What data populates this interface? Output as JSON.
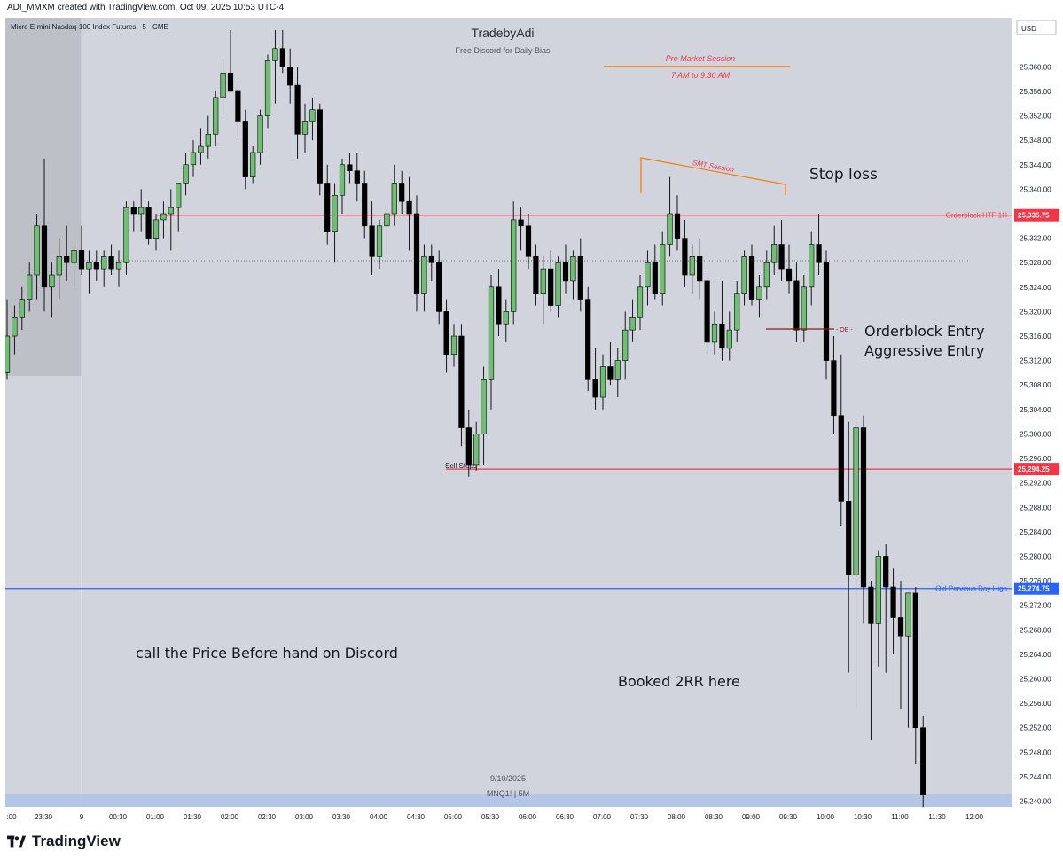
{
  "header": "ADI_MMXM created with TradingView.com, Oct 09, 2025 10:53 UTC-4",
  "symbol_line": "Micro E-mini Nasdaq-100 Index Futures · 5 · CME",
  "watermark": {
    "title": "TradebyAdi",
    "subtitle": "Free Discord for Daily Bias"
  },
  "currency": "USD",
  "brand": "TradingView",
  "colors": {
    "bull": "#6fbf73",
    "bear": "#000000",
    "red_level": "#f23645",
    "blue_level": "#2962ff",
    "orange": "#f57c00",
    "chart_bg": "#d1d4dc"
  },
  "annotations": {
    "pre_market": "Pre Market Session",
    "pre_market_time": "7 AM to 9:30 AM",
    "smt": "SMT Session",
    "stop_loss": "Stop loss",
    "ob_tag": "OB",
    "ob_entry_1": "Orderblock Entry",
    "ob_entry_2": "Aggressive Entry",
    "sell_stops": "Sell Stops",
    "discord_note": "call the Price Before hand on Discord",
    "booked": "Booked 2RR here",
    "date_label": "9/10/2025",
    "ticker_label": "MNQ1! | 5M"
  },
  "chart_data": {
    "type": "candlestick",
    "title": "Micro E-mini Nasdaq-100 Index Futures · 5 · CME",
    "ylim": [
      25238,
      25364
    ],
    "y_ticks": [
      "25,360.00",
      "25,356.00",
      "25,352.00",
      "25,348.00",
      "25,344.00",
      "25,340.00",
      "25,336.00",
      "25,332.00",
      "25,328.00",
      "25,324.00",
      "25,320.00",
      "25,316.00",
      "25,312.00",
      "25,308.00",
      "25,304.00",
      "25,300.00",
      "25,296.00",
      "25,292.00",
      "25,288.00",
      "25,284.00",
      "25,280.00",
      "25,276.00",
      "25,272.00",
      "25,268.00",
      "25,264.00",
      "25,260.00",
      "25,256.00",
      "25,252.00",
      "25,248.00",
      "25,244.00",
      "25,240.00"
    ],
    "x_ticks": [
      ":00",
      "23:30",
      "9",
      "00:30",
      "01:00",
      "01:30",
      "02:00",
      "02:30",
      "03:00",
      "03:30",
      "04:00",
      "04:30",
      "05:00",
      "05:30",
      "06:00",
      "06:30",
      "07:00",
      "07:30",
      "08:00",
      "08:30",
      "09:00",
      "09:30",
      "10:00",
      "10:30",
      "11:00",
      "11:30",
      "12:00"
    ],
    "levels": [
      {
        "name": "Orderblock HTF 1H",
        "value": 25335.75,
        "label": "25,335.75",
        "color": "#f23645"
      },
      {
        "name": "",
        "value": 25294.25,
        "label": "25,294.25",
        "color": "#f23645"
      },
      {
        "name": "Old Pervious Day High",
        "value": 25274.75,
        "label": "25,274.75",
        "color": "#2962ff"
      }
    ],
    "candles": [
      [
        25310,
        25322,
        25309,
        25316
      ],
      [
        25316,
        25321,
        25313,
        25319
      ],
      [
        25319,
        25324,
        25317,
        25322
      ],
      [
        25322,
        25328,
        25320,
        25326
      ],
      [
        25326,
        25336,
        25322,
        25334
      ],
      [
        25334,
        25345,
        25320,
        25324
      ],
      [
        25324,
        25328,
        25319,
        25326
      ],
      [
        25326,
        25332,
        25322,
        25329
      ],
      [
        25329,
        25334,
        25325,
        25328
      ],
      [
        25328,
        25331,
        25324,
        25330
      ],
      [
        25330,
        25334,
        25326,
        25327
      ],
      [
        25327,
        25330,
        25323,
        25328
      ],
      [
        25328,
        25330,
        25325,
        25327
      ],
      [
        25327,
        25330,
        25324,
        25329
      ],
      [
        25329,
        25331,
        25326,
        25327
      ],
      [
        25327,
        25330,
        25324,
        25328
      ],
      [
        25328,
        25338,
        25326,
        25337
      ],
      [
        25337,
        25338,
        25333,
        25336
      ],
      [
        25336,
        25340,
        25333,
        25337
      ],
      [
        25337,
        25338,
        25331,
        25332
      ],
      [
        25332,
        25336,
        25330,
        25335
      ],
      [
        25335,
        25338,
        25332,
        25336
      ],
      [
        25336,
        25340,
        25330,
        25337
      ],
      [
        25337,
        25341,
        25333,
        25341
      ],
      [
        25341,
        25346,
        25339,
        25344
      ],
      [
        25344,
        25348,
        25342,
        25346
      ],
      [
        25346,
        25350,
        25344,
        25347
      ],
      [
        25347,
        25352,
        25345,
        25349
      ],
      [
        25349,
        25356,
        25347,
        25355
      ],
      [
        25355,
        25361,
        25352,
        25359
      ],
      [
        25359,
        25366,
        25357,
        25356
      ],
      [
        25356,
        25358,
        25348,
        25351
      ],
      [
        25351,
        25353,
        25340,
        25342
      ],
      [
        25342,
        25347,
        25341,
        25346
      ],
      [
        25346,
        25353,
        25344,
        25352
      ],
      [
        25352,
        25362,
        25350,
        25361
      ],
      [
        25361,
        25366,
        25354,
        25363
      ],
      [
        25363,
        25366,
        25359,
        25360
      ],
      [
        25360,
        25363,
        25354,
        25357
      ],
      [
        25357,
        25360,
        25345,
        25349
      ],
      [
        25349,
        25354,
        25346,
        25351
      ],
      [
        25351,
        25355,
        25348,
        25353
      ],
      [
        25353,
        25354,
        25339,
        25341
      ],
      [
        25341,
        25344,
        25331,
        25333
      ],
      [
        25333,
        25341,
        25328,
        25339
      ],
      [
        25339,
        25345,
        25336,
        25344
      ],
      [
        25344,
        25346,
        25341,
        25343
      ],
      [
        25343,
        25346,
        25338,
        25341
      ],
      [
        25341,
        25343,
        25332,
        25334
      ],
      [
        25334,
        25338,
        25326,
        25329
      ],
      [
        25329,
        25335,
        25327,
        25334
      ],
      [
        25334,
        25337,
        25329,
        25336
      ],
      [
        25336,
        25344,
        25334,
        25341
      ],
      [
        25341,
        25343,
        25336,
        25338
      ],
      [
        25338,
        25342,
        25330,
        25336
      ],
      [
        25336,
        25339,
        25320,
        25323
      ],
      [
        25323,
        25331,
        25320,
        25329
      ],
      [
        25329,
        25331,
        25325,
        25328
      ],
      [
        25328,
        25330,
        25318,
        25320
      ],
      [
        25320,
        25322,
        25310,
        25313
      ],
      [
        25313,
        25318,
        25311,
        25316
      ],
      [
        25316,
        25318,
        25298,
        25301
      ],
      [
        25301,
        25304,
        25293,
        25295
      ],
      [
        25295,
        25302,
        25294,
        25300
      ],
      [
        25300,
        25311,
        25295,
        25309
      ],
      [
        25309,
        25326,
        25304,
        25324
      ],
      [
        25324,
        25327,
        25316,
        25318
      ],
      [
        25318,
        25322,
        25315,
        25320
      ],
      [
        25320,
        25338,
        25318,
        25335
      ],
      [
        25335,
        25337,
        25330,
        25334
      ],
      [
        25334,
        25336,
        25327,
        25329
      ],
      [
        25329,
        25331,
        25321,
        25323
      ],
      [
        25323,
        25329,
        25318,
        25327
      ],
      [
        25327,
        25330,
        25320,
        25321
      ],
      [
        25321,
        25329,
        25319,
        25328
      ],
      [
        25328,
        25331,
        25323,
        25325
      ],
      [
        25325,
        25330,
        25322,
        25329
      ],
      [
        25329,
        25332,
        25320,
        25322
      ],
      [
        25322,
        25324,
        25307,
        25309
      ],
      [
        25309,
        25314,
        25304,
        25306
      ],
      [
        25306,
        25313,
        25304,
        25311
      ],
      [
        25311,
        25315,
        25308,
        25309
      ],
      [
        25309,
        25314,
        25306,
        25312
      ],
      [
        25312,
        25320,
        25309,
        25317
      ],
      [
        25317,
        25322,
        25315,
        25319
      ],
      [
        25319,
        25326,
        25317,
        25324
      ],
      [
        25324,
        25330,
        25321,
        25328
      ],
      [
        25328,
        25331,
        25322,
        25323
      ],
      [
        25323,
        25333,
        25321,
        25331
      ],
      [
        25331,
        25342,
        25329,
        25336
      ],
      [
        25336,
        25339,
        25330,
        25332
      ],
      [
        25332,
        25335,
        25324,
        25326
      ],
      [
        25326,
        25331,
        25323,
        25329
      ],
      [
        25329,
        25332,
        25322,
        25325
      ],
      [
        25325,
        25326,
        25313,
        25315
      ],
      [
        25315,
        25320,
        25313,
        25318
      ],
      [
        25318,
        25325,
        25312,
        25314
      ],
      [
        25314,
        25320,
        25312,
        25317
      ],
      [
        25317,
        25325,
        25315,
        25323
      ],
      [
        25323,
        25330,
        25321,
        25329
      ],
      [
        25329,
        25331,
        25321,
        25322
      ],
      [
        25322,
        25326,
        25319,
        25324
      ],
      [
        25324,
        25330,
        25322,
        25328
      ],
      [
        25328,
        25334,
        25326,
        25331
      ],
      [
        25331,
        25335,
        25325,
        25327
      ],
      [
        25327,
        25331,
        25323,
        25325
      ],
      [
        25325,
        25328,
        25315,
        25317
      ],
      [
        25317,
        25326,
        25315,
        25324
      ],
      [
        25324,
        25333,
        25321,
        25331
      ],
      [
        25331,
        25336,
        25326,
        25328
      ],
      [
        25328,
        25330,
        25309,
        25312
      ],
      [
        25312,
        25316,
        25300,
        25303
      ],
      [
        25303,
        25313,
        25285,
        25289
      ],
      [
        25289,
        25302,
        25261,
        25277
      ],
      [
        25277,
        25302,
        25255,
        25301
      ],
      [
        25301,
        25303,
        25269,
        25275
      ],
      [
        25275,
        25276,
        25250,
        25269
      ],
      [
        25269,
        25281,
        25262,
        25280
      ],
      [
        25280,
        25282,
        25261,
        25275
      ],
      [
        25275,
        25278,
        25264,
        25270
      ],
      [
        25270,
        25276,
        25255,
        25267
      ],
      [
        25267,
        25274,
        25252,
        25274
      ],
      [
        25274,
        25275,
        25246,
        25252
      ],
      [
        25252,
        25254,
        25239,
        25241
      ]
    ]
  }
}
